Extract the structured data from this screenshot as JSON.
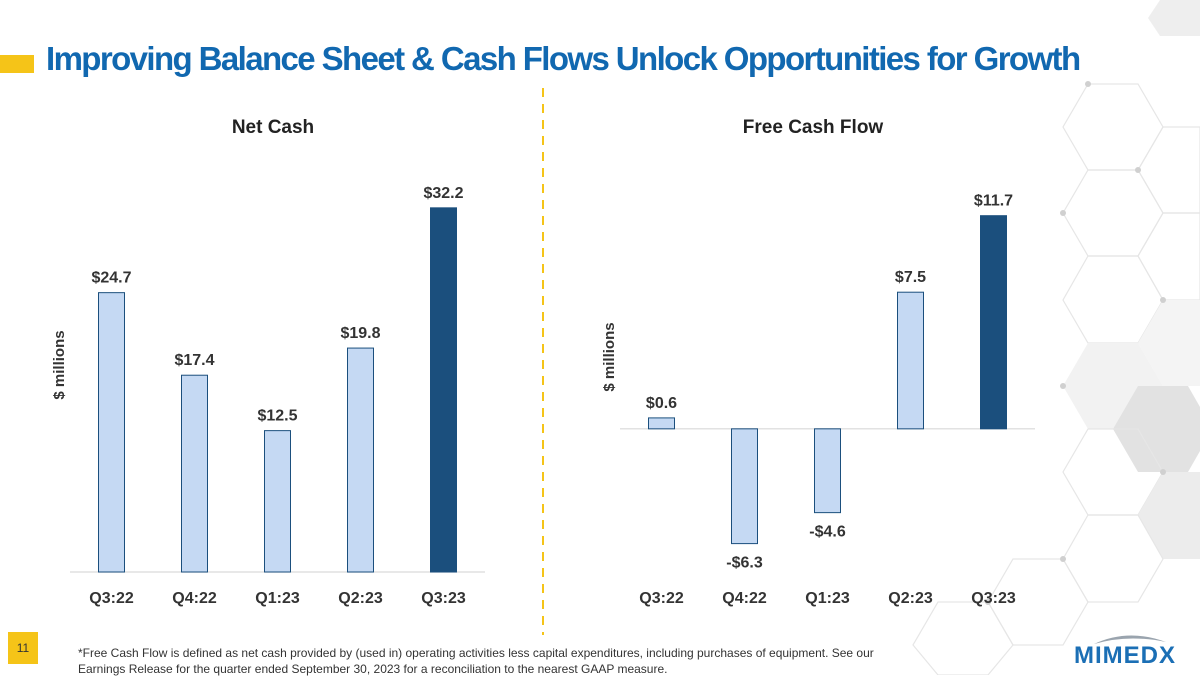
{
  "slide": {
    "title": "Improving Balance Sheet & Cash Flows Unlock Opportunities for Growth",
    "page_number": "11",
    "footnote": "*Free Cash Flow is defined as net cash provided by (used in) operating activities less capital expenditures, including purchases of equipment. See our Earnings Release for the quarter ended September 30, 2023 for a reconciliation to the nearest GAAP measure.",
    "logo_text": "MIMEDX"
  },
  "colors": {
    "title": "#1168b0",
    "accent": "#f5c418",
    "bar_light": "#c5d9f3",
    "bar_dark": "#1b4f7d",
    "bar_border": "#1b4f7d"
  },
  "chart_data": [
    {
      "type": "bar",
      "title": "Net Cash",
      "ylabel": "$ millions",
      "xlabel": "",
      "categories": [
        "Q3:22",
        "Q4:22",
        "Q1:23",
        "Q2:23",
        "Q3:23"
      ],
      "values": [
        24.7,
        17.4,
        12.5,
        19.8,
        32.2
      ],
      "labels": [
        "$24.7",
        "$17.4",
        "$12.5",
        "$19.8",
        "$32.2"
      ],
      "highlight": [
        false,
        false,
        false,
        false,
        true
      ],
      "ylim": [
        0,
        33.6
      ],
      "grid": false
    },
    {
      "type": "bar",
      "title": "Free Cash Flow",
      "ylabel": "$ millions",
      "xlabel": "",
      "categories": [
        "Q3:22",
        "Q4:22",
        "Q1:23",
        "Q2:23",
        "Q3:23"
      ],
      "values": [
        0.6,
        -6.3,
        -4.6,
        7.5,
        11.7
      ],
      "labels": [
        "$0.6",
        "-$6.3",
        "-$4.6",
        "$7.5",
        "$11.7"
      ],
      "highlight": [
        false,
        false,
        false,
        false,
        true
      ],
      "ylim": [
        -7.2,
        13.0
      ],
      "grid": false
    }
  ]
}
